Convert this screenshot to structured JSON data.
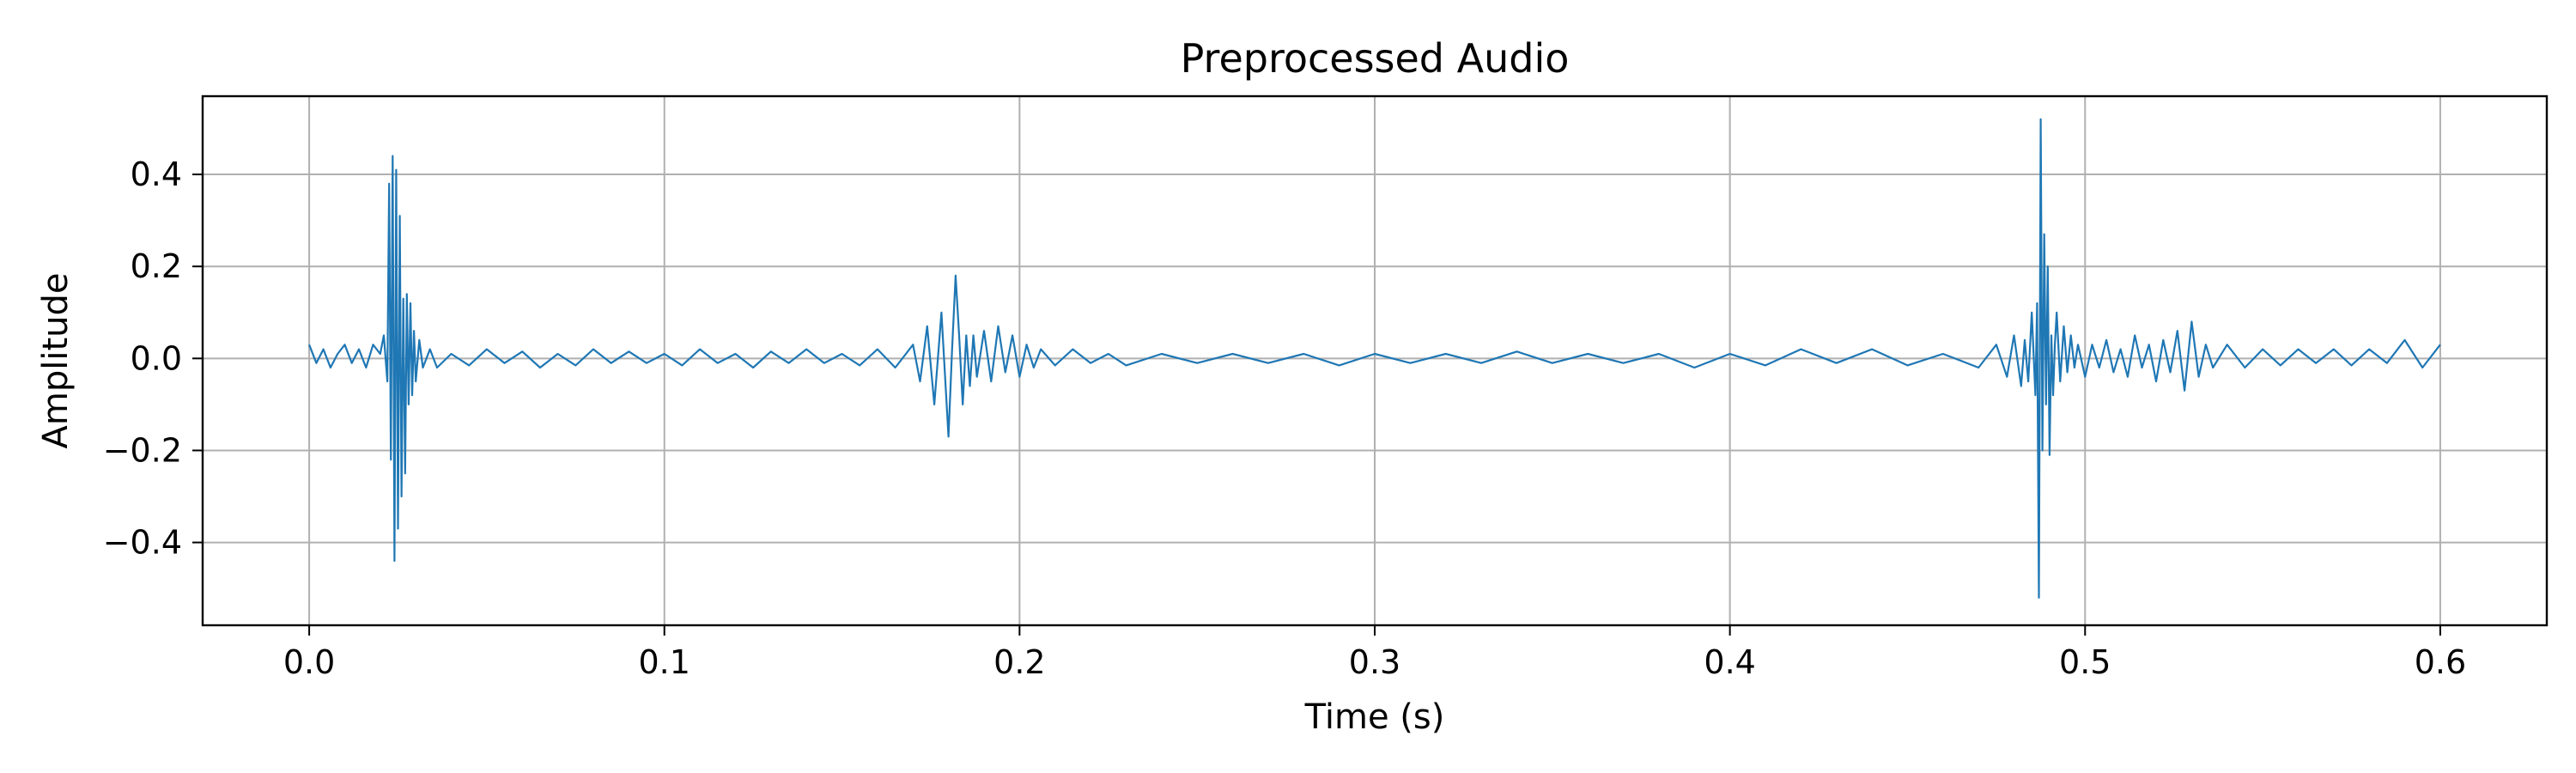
{
  "colors": {
    "background": "#ffffff",
    "series": "#1f77b4",
    "grid": "#b0b0b0",
    "axis": "#000000"
  },
  "chart_data": {
    "type": "line",
    "title": "Preprocessed Audio",
    "xlabel": "Time (s)",
    "ylabel": "Amplitude",
    "xlim": [
      -0.03,
      0.63
    ],
    "ylim": [
      -0.58,
      0.57
    ],
    "xticks": [
      0.0,
      0.1,
      0.2,
      0.3,
      0.4,
      0.5,
      0.6
    ],
    "xtick_labels": [
      "0.0",
      "0.1",
      "0.2",
      "0.3",
      "0.4",
      "0.5",
      "0.6"
    ],
    "yticks": [
      -0.4,
      -0.2,
      0.0,
      0.2,
      0.4
    ],
    "ytick_labels": [
      "−0.4",
      "−0.2",
      "0.0",
      "0.2",
      "0.4"
    ],
    "grid": true,
    "legend": "none",
    "series": [
      {
        "x": [
          0.0,
          0.002,
          0.004,
          0.006,
          0.008,
          0.01,
          0.012,
          0.014,
          0.016,
          0.018,
          0.02,
          0.021,
          0.022,
          0.0225,
          0.023,
          0.0235,
          0.024,
          0.0245,
          0.025,
          0.0255,
          0.026,
          0.0265,
          0.027,
          0.0275,
          0.028,
          0.0285,
          0.029,
          0.0295,
          0.03,
          0.031,
          0.032,
          0.034,
          0.036,
          0.04,
          0.045,
          0.05,
          0.055,
          0.06,
          0.065,
          0.07,
          0.075,
          0.08,
          0.085,
          0.09,
          0.095,
          0.1,
          0.105,
          0.11,
          0.115,
          0.12,
          0.125,
          0.13,
          0.135,
          0.14,
          0.145,
          0.15,
          0.155,
          0.16,
          0.165,
          0.17,
          0.172,
          0.174,
          0.176,
          0.178,
          0.18,
          0.181,
          0.182,
          0.183,
          0.184,
          0.185,
          0.186,
          0.187,
          0.188,
          0.19,
          0.192,
          0.194,
          0.196,
          0.198,
          0.2,
          0.202,
          0.204,
          0.206,
          0.21,
          0.215,
          0.22,
          0.225,
          0.23,
          0.24,
          0.25,
          0.26,
          0.27,
          0.28,
          0.29,
          0.3,
          0.31,
          0.32,
          0.33,
          0.34,
          0.35,
          0.36,
          0.37,
          0.38,
          0.39,
          0.4,
          0.41,
          0.42,
          0.43,
          0.44,
          0.45,
          0.46,
          0.47,
          0.475,
          0.478,
          0.48,
          0.482,
          0.483,
          0.484,
          0.485,
          0.486,
          0.4865,
          0.487,
          0.4875,
          0.488,
          0.4885,
          0.489,
          0.4895,
          0.49,
          0.4905,
          0.491,
          0.4915,
          0.492,
          0.493,
          0.494,
          0.495,
          0.496,
          0.497,
          0.498,
          0.5,
          0.502,
          0.504,
          0.506,
          0.508,
          0.51,
          0.512,
          0.514,
          0.516,
          0.518,
          0.52,
          0.522,
          0.524,
          0.526,
          0.528,
          0.53,
          0.532,
          0.534,
          0.536,
          0.54,
          0.545,
          0.55,
          0.555,
          0.56,
          0.565,
          0.57,
          0.575,
          0.58,
          0.585,
          0.59,
          0.595,
          0.6
        ],
        "y": [
          0.03,
          -0.01,
          0.02,
          -0.02,
          0.01,
          0.03,
          -0.01,
          0.02,
          -0.02,
          0.03,
          0.01,
          0.05,
          -0.05,
          0.38,
          -0.22,
          0.44,
          -0.44,
          0.41,
          -0.37,
          0.31,
          -0.3,
          0.13,
          -0.25,
          0.14,
          -0.1,
          0.12,
          -0.08,
          0.06,
          -0.05,
          0.04,
          -0.02,
          0.02,
          -0.02,
          0.01,
          -0.015,
          0.02,
          -0.01,
          0.015,
          -0.02,
          0.01,
          -0.015,
          0.02,
          -0.01,
          0.015,
          -0.01,
          0.01,
          -0.015,
          0.02,
          -0.01,
          0.01,
          -0.02,
          0.015,
          -0.01,
          0.02,
          -0.01,
          0.01,
          -0.015,
          0.02,
          -0.02,
          0.03,
          -0.05,
          0.07,
          -0.1,
          0.1,
          -0.17,
          0.02,
          0.18,
          0.05,
          -0.1,
          0.05,
          -0.06,
          0.05,
          -0.04,
          0.06,
          -0.05,
          0.07,
          -0.03,
          0.05,
          -0.04,
          0.03,
          -0.02,
          0.02,
          -0.015,
          0.02,
          -0.01,
          0.01,
          -0.015,
          0.01,
          -0.01,
          0.01,
          -0.01,
          0.01,
          -0.015,
          0.01,
          -0.01,
          0.01,
          -0.01,
          0.015,
          -0.01,
          0.01,
          -0.01,
          0.01,
          -0.02,
          0.01,
          -0.015,
          0.02,
          -0.01,
          0.02,
          -0.015,
          0.01,
          -0.02,
          0.03,
          -0.04,
          0.05,
          -0.06,
          0.04,
          -0.05,
          0.1,
          -0.08,
          0.12,
          -0.52,
          0.52,
          -0.2,
          0.27,
          -0.1,
          0.2,
          -0.21,
          0.05,
          -0.08,
          0.03,
          0.1,
          -0.05,
          0.07,
          -0.03,
          0.05,
          -0.02,
          0.03,
          -0.04,
          0.03,
          -0.02,
          0.04,
          -0.03,
          0.02,
          -0.04,
          0.05,
          -0.02,
          0.03,
          -0.05,
          0.04,
          -0.03,
          0.06,
          -0.07,
          0.08,
          -0.04,
          0.03,
          -0.02,
          0.03,
          -0.02,
          0.02,
          -0.015,
          0.02,
          -0.01,
          0.02,
          -0.015,
          0.02,
          -0.01,
          0.04,
          -0.02,
          0.03
        ]
      }
    ]
  }
}
